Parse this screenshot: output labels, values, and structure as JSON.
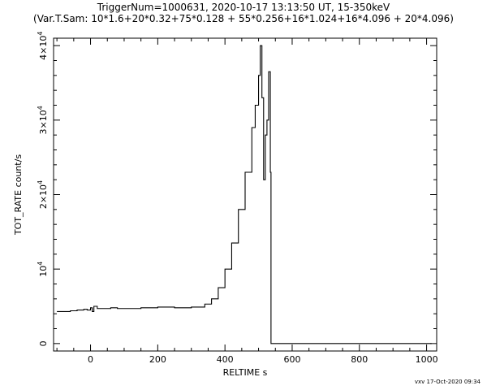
{
  "chart_data": {
    "type": "line",
    "title": "TriggerNum=1000631, 2020-10-17 13:13:50 UT, 15-350keV",
    "subtitle": "(Var.T.Sam: 10*1.6+20*0.32+75*0.128  +  55*0.256+16*1.024+16*4.096  +  20*4.096)",
    "xlabel": "RELTIME  s",
    "ylabel": "TOT_RATE  count/s",
    "xlim": [
      -110,
      1030
    ],
    "ylim": [
      -1000,
      41000
    ],
    "x_ticks": [
      0,
      200,
      400,
      600,
      800,
      1000
    ],
    "x_tick_labels": [
      "0",
      "200",
      "400",
      "600",
      "800",
      "1000"
    ],
    "y_ticks": [
      0,
      10000,
      20000,
      30000,
      40000
    ],
    "y_tick_labels": [
      {
        "base": "0",
        "exp": ""
      },
      {
        "base": "10",
        "exp": "4"
      },
      {
        "base": "2×10",
        "exp": "4"
      },
      {
        "base": "3×10",
        "exp": "4"
      },
      {
        "base": "4×10",
        "exp": "4"
      }
    ],
    "grid": false,
    "series": [
      {
        "x": [
          -100,
          -80,
          -60,
          -40,
          -20,
          -10,
          0,
          5,
          10,
          20,
          40,
          60,
          80,
          100,
          150,
          200,
          250,
          300,
          340,
          360,
          380,
          400,
          420,
          440,
          460,
          480,
          490,
          500,
          505,
          510,
          515,
          520,
          525,
          530,
          535,
          537,
          540,
          600,
          700,
          800,
          900,
          1000,
          1015
        ],
        "y": [
          4300,
          4300,
          4400,
          4500,
          4600,
          4500,
          4800,
          4300,
          5000,
          4700,
          4700,
          4800,
          4700,
          4700,
          4800,
          4900,
          4800,
          4900,
          5300,
          6000,
          7500,
          10000,
          13500,
          18000,
          23000,
          29000,
          32000,
          36000,
          40000,
          33000,
          22000,
          28000,
          30000,
          36500,
          23000,
          0,
          0,
          0,
          0,
          0,
          0,
          0,
          0
        ]
      }
    ]
  },
  "footer": "vxv 17-Oct-2020 09:34"
}
